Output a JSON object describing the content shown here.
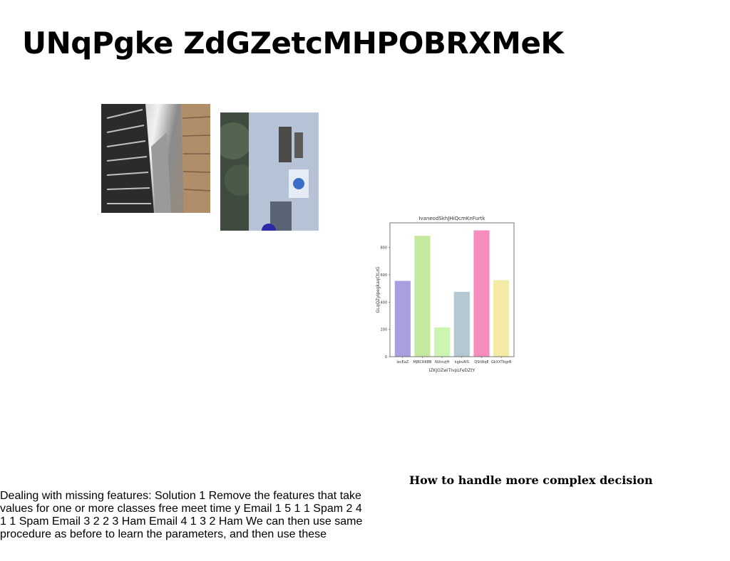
{
  "title": "UNqPgke ZdGZetcMHPOBRXMeK",
  "images": [
    {
      "name": "photo-skyscrapers"
    },
    {
      "name": "photo-building-facade"
    }
  ],
  "chart_data": {
    "type": "bar",
    "title": "IvaneodSkhJHiQcmKnFurtk",
    "xlabel": "IZKjOZwiTIvpLFeDZtY",
    "ylabel": "GLqQZyIpegkaqCtLrG",
    "categories": [
      "lecEaZ",
      "MJBCRKBB",
      "NUtnzJH",
      "kgbvAIS",
      "QStWqE",
      "GkXXTbgrB"
    ],
    "values": [
      555,
      885,
      215,
      475,
      925,
      560
    ],
    "colors": [
      "#a89ee0",
      "#c3e89e",
      "#cdf5b2",
      "#b4c8d2",
      "#f68bbd",
      "#f3eaa3"
    ],
    "ylim": [
      0,
      980
    ],
    "yticks": [
      0,
      200,
      400,
      600,
      800
    ],
    "grid": false
  },
  "caption": "How to handle more complex decision",
  "body_text": "Dealing with missing features: Solution 1 Remove the features that take values for one or more classes free meet time y Email 1 5 1 1 Spam 2 4 1 1 Spam Email 3 2 2 3 Ham Email 4 1 3 2 Ham We can then use same procedure as before to learn the parameters, and then use these"
}
